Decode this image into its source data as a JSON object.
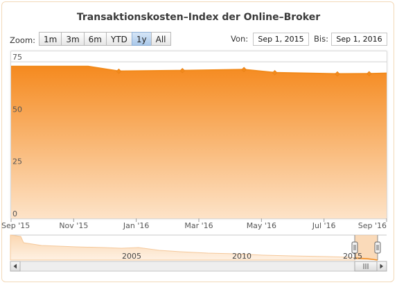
{
  "chart_data": {
    "type": "area",
    "title": "Transaktionskosten–Index der Online–Broker",
    "ylim": [
      0,
      80
    ],
    "y_ticks": [
      "0",
      "25",
      "50",
      "75"
    ],
    "x_ticks": [
      "Sep '15",
      "Nov '15",
      "Jan '16",
      "Mar '16",
      "May '16",
      "Jul '16",
      "Sep '16"
    ],
    "grid": true,
    "legend": "none",
    "color": "#f28a1b",
    "series": [
      {
        "x": [
          "2015-09-01",
          "2015-10-15",
          "2015-11-15",
          "2015-12-15",
          "2016-02-15",
          "2016-04-15",
          "2016-05-15",
          "2016-07-15",
          "2016-08-15",
          "2016-09-01"
        ],
        "values": [
          72.8,
          72.8,
          72.8,
          70.5,
          70.8,
          71.3,
          69.8,
          69.2,
          69.3,
          69.5
        ]
      }
    ],
    "markers": {
      "x": [
        "2015-12-15",
        "2016-02-15",
        "2016-04-15",
        "2016-05-15",
        "2016-07-15",
        "2016-08-15"
      ],
      "values": [
        70.5,
        70.8,
        71.3,
        69.8,
        69.2,
        69.3
      ]
    }
  },
  "controls": {
    "zoom_label": "Zoom:",
    "zoom_buttons": [
      "1m",
      "3m",
      "6m",
      "YTD",
      "1y",
      "All"
    ],
    "zoom_active": "1y",
    "from_label": "Von:",
    "from_value": "Sep 1, 2015",
    "to_label": "Bis:",
    "to_value": "Sep 1, 2016"
  },
  "navigator": {
    "year_labels": [
      "2005",
      "2010",
      "2015"
    ],
    "scroll_thumb_icon": "grip-icon",
    "left_arrow_icon": "arrow-left-icon",
    "right_arrow_icon": "arrow-right-icon"
  }
}
